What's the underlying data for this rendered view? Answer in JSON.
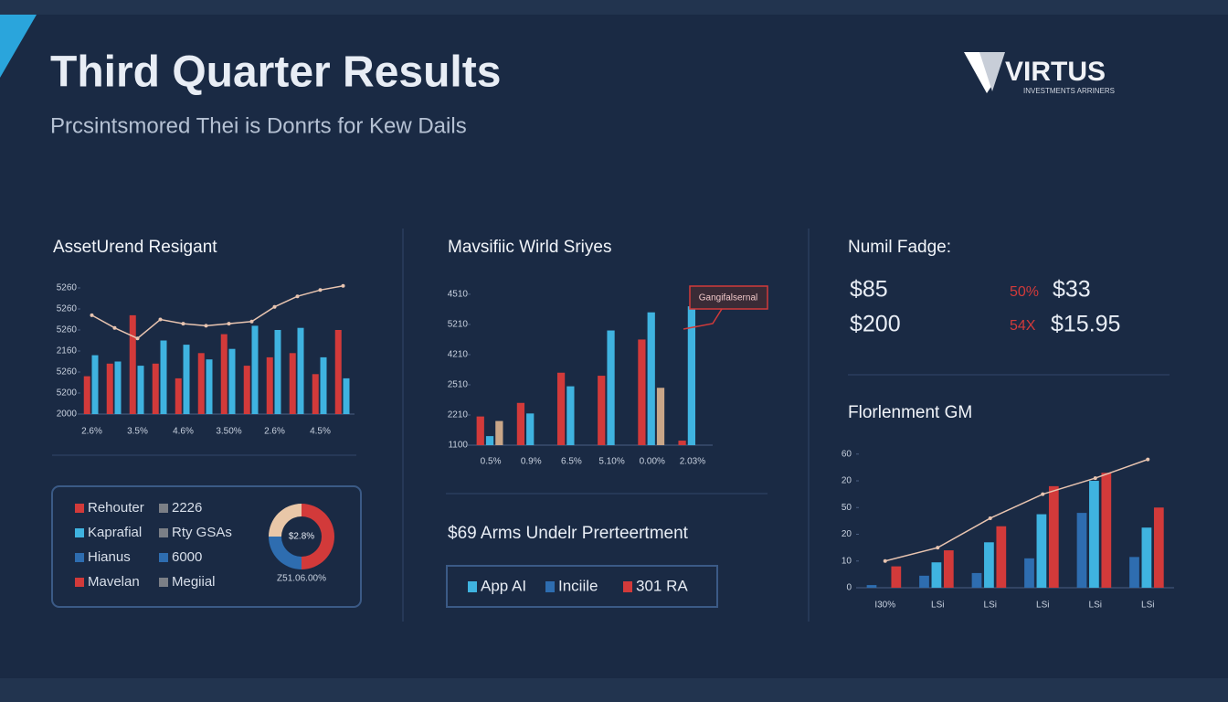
{
  "header": {
    "title": "Third Quarter Results",
    "subtitle": "Prcsintsmored Thei is Donrts for Kew Dails"
  },
  "logo": {
    "name": "VIRTUS",
    "tagline": "INVESTMENTS ARRINERS"
  },
  "kpi": {
    "title": "Numil Fadge:",
    "left": [
      "$85",
      "$200"
    ],
    "tags": [
      "50%",
      "54X"
    ],
    "right": [
      "$33",
      "$15.95"
    ]
  },
  "legend_box": {
    "items": [
      {
        "label": "Rehouter",
        "color": "#d23a3a"
      },
      {
        "label": "2226",
        "color": "#7b7f86"
      },
      {
        "label": "Kaprafial",
        "color": "#3fb3e0"
      },
      {
        "label": "Rty GSAs",
        "color": "#7b7f86"
      },
      {
        "label": "Hianus",
        "color": "#2e6db0"
      },
      {
        "label": "6000",
        "color": "#2e6db0"
      },
      {
        "label": "Mavelan",
        "color": "#d23a3a"
      },
      {
        "label": "Megiial",
        "color": "#7b7f86"
      }
    ]
  },
  "aum": {
    "title": "$69 Arms Undelr Prerteertment",
    "legend": [
      {
        "label": "App AI",
        "color": "#3fb3e0"
      },
      {
        "label": "Inciile",
        "color": "#2e6db0"
      },
      {
        "label": "301 RA",
        "color": "#d23a3a"
      }
    ]
  },
  "chart_data": [
    {
      "type": "bar",
      "title": "AssetUrend Resigant",
      "categories": [
        "2.6%",
        null,
        "3.5%",
        null,
        "4.6%",
        null,
        "3.50%",
        null,
        "2.6%",
        null,
        "4.5%",
        null
      ],
      "series": [
        {
          "name": "Rehouter",
          "color": "#d23a3a",
          "values": [
            1.8,
            2.4,
            4.7,
            2.4,
            1.7,
            2.9,
            3.8,
            2.3,
            2.7,
            2.9,
            1.9,
            4.0
          ]
        },
        {
          "name": "Kaprafial",
          "color": "#3fb3e0",
          "values": [
            2.8,
            2.5,
            2.3,
            3.5,
            3.3,
            2.6,
            3.1,
            4.2,
            4.0,
            4.1,
            2.7,
            1.7
          ]
        },
        {
          "name": "Mavelan",
          "type": "line",
          "color": "#e8c4b0",
          "values": [
            4.7,
            4.1,
            3.6,
            4.5,
            4.3,
            4.2,
            4.3,
            4.4,
            5.1,
            5.6,
            5.9,
            6.1
          ]
        }
      ],
      "ylim": [
        0,
        6.5
      ],
      "yticks": [
        {
          "value": 0,
          "label": "2000"
        },
        {
          "value": 1,
          "label": "5200"
        },
        {
          "value": 2,
          "label": "5260"
        },
        {
          "value": 3,
          "label": "2160"
        },
        {
          "value": 4,
          "label": "5260"
        },
        {
          "value": 5,
          "label": "5260"
        },
        {
          "value": 6,
          "label": "5260"
        }
      ]
    },
    {
      "type": "bar",
      "title": "Mavsifiic Wirld Sriyes",
      "annotation": "Gangifalsernal",
      "categories": [
        "0.5%",
        "0.9%",
        "6.5%",
        "5.10%",
        "0.00%",
        "2.03%"
      ],
      "series": [
        {
          "name": "Rehouter",
          "color": "#d23a3a",
          "values": [
            0.95,
            1.4,
            2.4,
            2.3,
            3.5,
            0.15
          ]
        },
        {
          "name": "Kaprafial",
          "color": "#3fb3e0",
          "values": [
            0.3,
            1.05,
            1.95,
            3.8,
            4.4,
            4.6
          ]
        },
        {
          "name": "Megiial",
          "color": "#c9a688",
          "values": [
            0.8,
            0,
            0,
            0,
            1.9,
            0
          ]
        }
      ],
      "ylim": [
        0,
        5.3
      ],
      "yticks": [
        {
          "value": 0,
          "label": "1100"
        },
        {
          "value": 1,
          "label": "2210"
        },
        {
          "value": 2,
          "label": "2510"
        },
        {
          "value": 3,
          "label": "4210"
        },
        {
          "value": 4,
          "label": "5210"
        },
        {
          "value": 5,
          "label": "4510"
        }
      ]
    },
    {
      "type": "bar",
      "title": "Florlenment GM",
      "categories": [
        "I30%",
        "LSi",
        "LSi",
        "LSi",
        "LSi",
        "LSi"
      ],
      "series": [
        {
          "name": "Hianus",
          "color": "#2e6db0",
          "values": [
            0.1,
            0.45,
            0.55,
            1.1,
            2.8,
            1.15
          ]
        },
        {
          "name": "Kaprafial",
          "color": "#3fb3e0",
          "values": [
            0,
            0.95,
            1.7,
            2.75,
            4.0,
            2.25
          ]
        },
        {
          "name": "Rehouter",
          "color": "#d23a3a",
          "values": [
            0.8,
            1.4,
            2.3,
            3.8,
            4.3,
            3.0
          ]
        },
        {
          "name": "Mavelan",
          "type": "line",
          "color": "#e8c4b0",
          "values": [
            1.0,
            1.5,
            2.6,
            3.5,
            4.1,
            4.8
          ]
        }
      ],
      "ylim": [
        0,
        5.3
      ],
      "yticks": [
        {
          "value": 0,
          "label": "0"
        },
        {
          "value": 1,
          "label": "10"
        },
        {
          "value": 2,
          "label": "20"
        },
        {
          "value": 3,
          "label": "50"
        },
        {
          "value": 4,
          "label": "20"
        },
        {
          "value": 5,
          "label": "60"
        }
      ]
    },
    {
      "type": "pie",
      "center_label": "$2.8%",
      "caption": "Z51.06.00%",
      "values": [
        50,
        25,
        25
      ],
      "colors": [
        "#d23a3a",
        "#2e6db0",
        "#e9c7a8"
      ]
    }
  ]
}
